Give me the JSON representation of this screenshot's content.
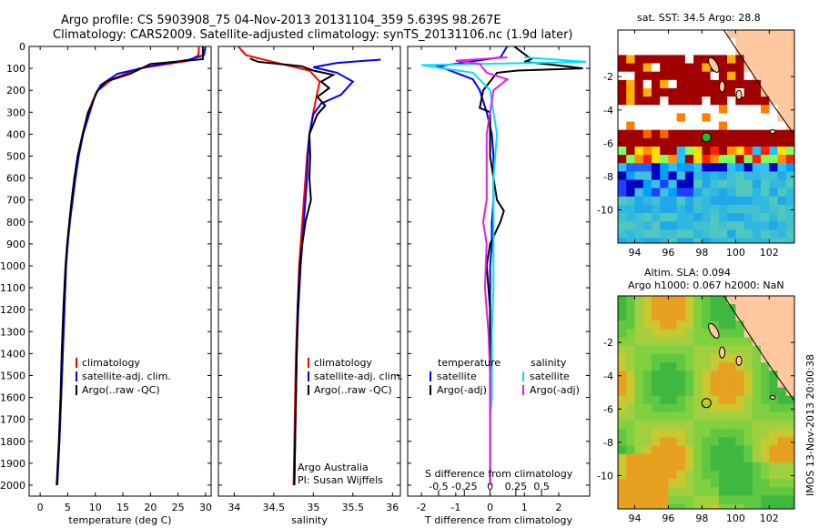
{
  "header": {
    "line1": "Argo profile: CS 5903908_75 04-Nov-2013 20131104_359 5.639S 98.267E",
    "line2": "Climatology: CARS2009. Satellite-adjusted climatology: synTS_20131106.nc (1.9d later)"
  },
  "colors": {
    "clim": "#ff0000",
    "sat": "#0000ff",
    "argo": "#000000",
    "sat_s": "#00e0ff",
    "argo_s": "#e020e0",
    "land": "#ffc8a0"
  },
  "depth_ticks": [
    0,
    100,
    200,
    300,
    400,
    500,
    600,
    700,
    800,
    900,
    1000,
    1100,
    1200,
    1300,
    1400,
    1500,
    1600,
    1700,
    1800,
    1900,
    2000
  ],
  "chart_data": [
    {
      "type": "line",
      "name": "temperature-profile",
      "xlabel": "temperature (deg C)",
      "xlim": [
        -2,
        31
      ],
      "ylim": [
        2050,
        0
      ],
      "xticks": [
        0,
        5,
        10,
        15,
        20,
        25,
        30
      ],
      "legend": [
        "climatology",
        "satellite-adj. clim.",
        "Argo(..raw -QC)"
      ],
      "series": [
        {
          "name": "climatology",
          "color": "clim",
          "points": [
            [
              28.8,
              0
            ],
            [
              28.7,
              40
            ],
            [
              27,
              65
            ],
            [
              18,
              100
            ],
            [
              13,
              150
            ],
            [
              10.5,
              200
            ],
            [
              9.5,
              250
            ],
            [
              8.7,
              300
            ],
            [
              7.7,
              400
            ],
            [
              6.9,
              500
            ],
            [
              6.3,
              600
            ],
            [
              5.8,
              700
            ],
            [
              5.4,
              800
            ],
            [
              5,
              900
            ],
            [
              4.7,
              1000
            ],
            [
              4.4,
              1200
            ],
            [
              4.1,
              1400
            ],
            [
              3.8,
              1600
            ],
            [
              3.5,
              1800
            ],
            [
              3.3,
              1900
            ],
            [
              3.1,
              2000
            ]
          ]
        },
        {
          "name": "satellite",
          "color": "sat",
          "points": [
            [
              30,
              0
            ],
            [
              29.7,
              40
            ],
            [
              27,
              60
            ],
            [
              20,
              90
            ],
            [
              14,
              125
            ],
            [
              11,
              175
            ],
            [
              10,
              220
            ],
            [
              9,
              300
            ],
            [
              7.8,
              400
            ],
            [
              7,
              500
            ],
            [
              6.4,
              600
            ],
            [
              5.9,
              700
            ],
            [
              5.4,
              800
            ],
            [
              5,
              900
            ],
            [
              4.7,
              1000
            ],
            [
              4.4,
              1200
            ],
            [
              4.1,
              1400
            ],
            [
              3.8,
              1600
            ],
            [
              3.5,
              1800
            ],
            [
              3.3,
              1900
            ],
            [
              3.1,
              2000
            ]
          ]
        },
        {
          "name": "argo",
          "color": "argo",
          "points": [
            [
              29.5,
              0
            ],
            [
              29.5,
              40
            ],
            [
              29.5,
              58
            ],
            [
              20,
              80
            ],
            [
              16.3,
              125
            ],
            [
              12,
              160
            ],
            [
              10.3,
              205
            ],
            [
              9.3,
              270
            ],
            [
              8.7,
              300
            ],
            [
              7.7,
              400
            ],
            [
              6.8,
              500
            ],
            [
              6.2,
              600
            ],
            [
              5.7,
              700
            ],
            [
              5.3,
              800
            ],
            [
              4.9,
              900
            ],
            [
              4.6,
              1000
            ],
            [
              4.2,
              1200
            ],
            [
              3.9,
              1400
            ],
            [
              3.7,
              1600
            ],
            [
              3.4,
              1800
            ],
            [
              3.1,
              1950
            ],
            [
              3.0,
              2000
            ]
          ]
        }
      ]
    },
    {
      "type": "line",
      "name": "salinity-profile",
      "xlabel": "salinity",
      "xlim": [
        33.8,
        36.1
      ],
      "ylim": [
        2050,
        0
      ],
      "xticks": [
        34,
        34.5,
        35,
        35.5,
        36
      ],
      "legend": [
        "climatology",
        "satellite-adj. clim.",
        "Argo(..raw -QC)"
      ],
      "annotation": [
        "Argo Australia",
        "PI: Susan Wijffels"
      ],
      "series": [
        {
          "name": "climatology",
          "color": "clim",
          "points": [
            [
              34.05,
              0
            ],
            [
              34.15,
              40
            ],
            [
              34.6,
              80
            ],
            [
              34.95,
              110
            ],
            [
              35.08,
              160
            ],
            [
              35.05,
              210
            ],
            [
              35,
              300
            ],
            [
              34.95,
              400
            ],
            [
              34.92,
              500
            ],
            [
              34.9,
              600
            ],
            [
              34.88,
              700
            ],
            [
              34.86,
              800
            ],
            [
              34.84,
              900
            ],
            [
              34.82,
              1000
            ],
            [
              34.8,
              1200
            ],
            [
              34.78,
              1400
            ],
            [
              34.77,
              1600
            ],
            [
              34.76,
              1800
            ],
            [
              34.75,
              2000
            ]
          ]
        },
        {
          "name": "satellite",
          "color": "sat",
          "points": [
            [
              35.85,
              60
            ],
            [
              35.3,
              75
            ],
            [
              35,
              95
            ],
            [
              35.3,
              120
            ],
            [
              35.5,
              160
            ],
            [
              35.35,
              220
            ],
            [
              35.1,
              260
            ],
            [
              35,
              310
            ],
            [
              34.95,
              400
            ],
            [
              34.93,
              500
            ],
            [
              34.92,
              600
            ],
            [
              34.9,
              700
            ],
            [
              34.88,
              800
            ],
            [
              34.86,
              900
            ],
            [
              34.84,
              1000
            ],
            [
              34.81,
              1200
            ],
            [
              34.79,
              1400
            ],
            [
              34.78,
              1600
            ],
            [
              34.77,
              1800
            ],
            [
              34.76,
              2000
            ]
          ]
        },
        {
          "name": "argo",
          "color": "argo",
          "points": [
            [
              34.2,
              55
            ],
            [
              34.3,
              70
            ],
            [
              34.85,
              90
            ],
            [
              35,
              110
            ],
            [
              35.25,
              130
            ],
            [
              35.1,
              160
            ],
            [
              35.2,
              190
            ],
            [
              35.05,
              230
            ],
            [
              35.15,
              270
            ],
            [
              35.05,
              310
            ],
            [
              34.95,
              400
            ],
            [
              34.96,
              500
            ],
            [
              34.95,
              600
            ],
            [
              34.97,
              700
            ],
            [
              34.9,
              800
            ],
            [
              34.86,
              900
            ],
            [
              34.83,
              1000
            ],
            [
              34.8,
              1200
            ],
            [
              34.79,
              1400
            ],
            [
              34.78,
              1600
            ],
            [
              34.77,
              1800
            ],
            [
              34.76,
              2000
            ]
          ]
        }
      ]
    },
    {
      "type": "line",
      "name": "difference-profile",
      "xlabel": "T difference from climatology",
      "xlabel2": "S difference from climatology",
      "xlim": [
        -2.4,
        2.9
      ],
      "ylim": [
        2050,
        0
      ],
      "xticks": [
        -2,
        -1,
        0,
        1,
        2
      ],
      "xtick_labels": [
        "-2",
        "-1",
        "0",
        "1",
        "2"
      ],
      "s_ticks": [
        -1.5,
        -0.75,
        0,
        0.75,
        1.5
      ],
      "s_tick_labels": [
        "-0.5",
        "-0.25",
        "0",
        "0.25",
        "0.5"
      ],
      "legend_headers": [
        "temperature",
        "salinity"
      ],
      "legend_t": [
        "satellite",
        "Argo(-adj)"
      ],
      "legend_s": [
        "satellite",
        "Argo(-adj)"
      ],
      "series": [
        {
          "name": "T satellite",
          "color": "sat",
          "points": [
            [
              0.5,
              0
            ],
            [
              0.3,
              50
            ],
            [
              -1.5,
              90
            ],
            [
              -0.5,
              150
            ],
            [
              -0.3,
              200
            ],
            [
              -0.1,
              300
            ],
            [
              0.05,
              400
            ],
            [
              0.1,
              500
            ],
            [
              0.1,
              600
            ],
            [
              0.1,
              700
            ],
            [
              0.05,
              800
            ],
            [
              0.05,
              900
            ],
            [
              0,
              1000
            ],
            [
              0,
              1200
            ],
            [
              0,
              1400
            ],
            [
              0,
              1600
            ],
            [
              0,
              1800
            ],
            [
              0,
              2000
            ]
          ]
        },
        {
          "name": "T argo",
          "color": "argo",
          "points": [
            [
              0.7,
              0
            ],
            [
              1.2,
              58
            ],
            [
              1,
              70
            ],
            [
              2.2,
              90
            ],
            [
              2.7,
              100
            ],
            [
              0.8,
              110
            ],
            [
              0.2,
              120
            ],
            [
              -0.2,
              200
            ],
            [
              -0.3,
              280
            ],
            [
              0,
              300
            ],
            [
              0,
              500
            ],
            [
              0.2,
              700
            ],
            [
              0.4,
              750
            ],
            [
              0.3,
              800
            ],
            [
              0,
              900
            ],
            [
              -0.1,
              1000
            ],
            [
              0,
              1200
            ],
            [
              0,
              1500
            ],
            [
              0,
              1800
            ],
            [
              0,
              2000
            ]
          ]
        },
        {
          "name": "S satellite",
          "color": "sat_s",
          "points": [
            [
              1,
              50
            ],
            [
              2.8,
              70
            ],
            [
              -2,
              85
            ],
            [
              -0.5,
              120
            ],
            [
              0,
              200
            ],
            [
              0.1,
              300
            ],
            [
              0.2,
              400
            ],
            [
              0.1,
              600
            ],
            [
              0.1,
              700
            ],
            [
              0.1,
              900
            ],
            [
              0.1,
              1100
            ],
            [
              0.05,
              1300
            ],
            [
              0.05,
              1500
            ],
            [
              0.05,
              1600
            ],
            [
              0,
              1700
            ],
            [
              0,
              1900
            ],
            [
              0,
              2000
            ]
          ]
        },
        {
          "name": "S argo",
          "color": "argo_s",
          "points": [
            [
              0.5,
              50
            ],
            [
              -1,
              65
            ],
            [
              -0.3,
              80
            ],
            [
              -0.1,
              120
            ],
            [
              0.5,
              150
            ],
            [
              0.1,
              200
            ],
            [
              0,
              300
            ],
            [
              -0.1,
              400
            ],
            [
              -0.1,
              600
            ],
            [
              -0.1,
              700
            ],
            [
              -0.2,
              800
            ],
            [
              -0.1,
              900
            ],
            [
              -0.15,
              1100
            ],
            [
              -0.05,
              1300
            ],
            [
              0,
              1500
            ],
            [
              0,
              1800
            ],
            [
              0,
              2000
            ]
          ]
        }
      ]
    },
    {
      "type": "heatmap",
      "name": "sst-map",
      "title": "sat. SST: 34.5 Argo: 28.8",
      "xlim": [
        93,
        103.5
      ],
      "ylim": [
        -12,
        0.8
      ],
      "xticks": [
        94,
        96,
        98,
        100,
        102
      ],
      "yticks": [
        -10,
        -8,
        -6,
        -4,
        -2
      ],
      "argo_position": [
        98.267,
        -5.639
      ]
    },
    {
      "type": "heatmap",
      "name": "sla-map",
      "title": [
        "Altim. SLA: 0.094",
        "Argo h1000: 0.067 h2000: NaN"
      ],
      "xlim": [
        93,
        103.5
      ],
      "ylim": [
        -12,
        0.8
      ],
      "xticks": [
        94,
        96,
        98,
        100,
        102
      ],
      "yticks": [
        -10,
        -8,
        -6,
        -4,
        -2
      ],
      "argo_position": [
        98.267,
        -5.639
      ]
    }
  ],
  "side_stamp": "IMOS 13-Nov-2013 20:00:38"
}
